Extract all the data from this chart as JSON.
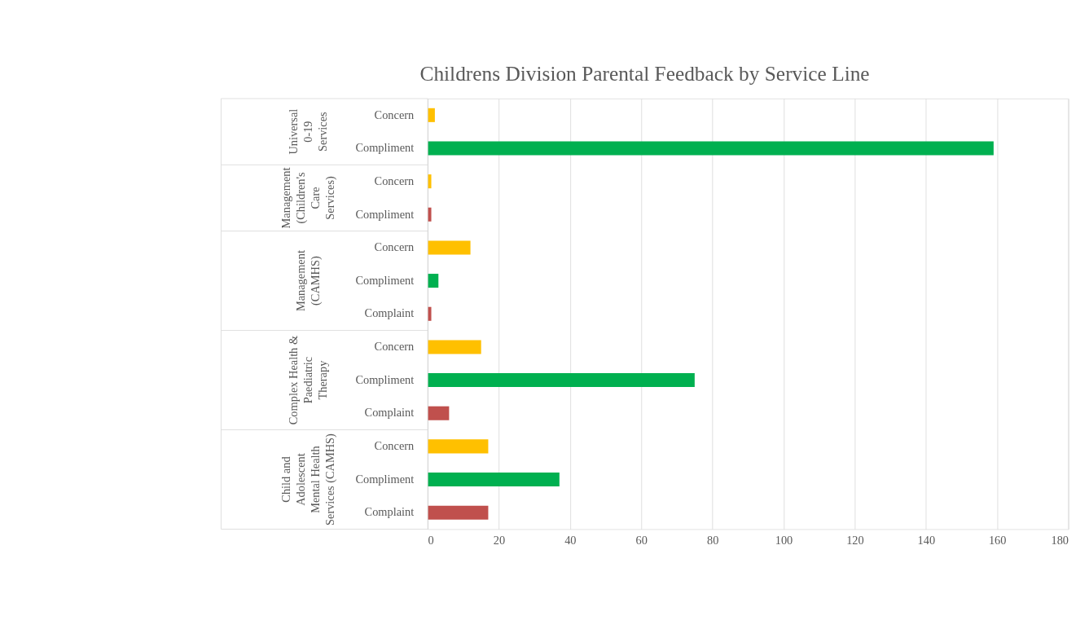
{
  "chart_data": {
    "type": "bar",
    "orientation": "horizontal",
    "title": "Childrens Division Parental Feedback by Service Line",
    "categories": [
      "Concern",
      "Compliment",
      "Concern",
      "Compliment",
      "Concern",
      "Compliment",
      "Complaint",
      "Concern",
      "Compliment",
      "Complaint",
      "Concern",
      "Compliment",
      "Complaint"
    ],
    "series": [
      {
        "values": [
          2,
          159,
          null,
          null,
          null,
          null,
          null,
          null,
          null,
          null,
          null,
          null,
          null
        ],
        "colors": [
          "#ffc000",
          "#00b050",
          null,
          null,
          null,
          null,
          null,
          null,
          null,
          null,
          null,
          null,
          null
        ]
      },
      {
        "values": [
          null,
          null,
          1,
          1,
          null,
          null,
          null,
          null,
          null,
          null,
          null,
          null,
          null
        ],
        "colors": [
          null,
          null,
          "#ffc000",
          "#c0504d",
          null,
          null,
          null,
          null,
          null,
          null,
          null,
          null,
          null
        ]
      },
      {
        "values": [
          null,
          null,
          null,
          null,
          12,
          3,
          1,
          null,
          null,
          null,
          null,
          null,
          null
        ],
        "colors": [
          null,
          null,
          null,
          null,
          "#ffc000",
          "#00b050",
          "#c0504d",
          null,
          null,
          null,
          null,
          null,
          null
        ]
      },
      {
        "values": [
          null,
          null,
          null,
          null,
          null,
          null,
          null,
          15,
          75,
          6,
          null,
          null,
          null
        ],
        "colors": [
          null,
          null,
          null,
          null,
          null,
          null,
          null,
          "#ffc000",
          "#00b050",
          "#c0504d",
          null,
          null,
          null
        ]
      },
      {
        "values": [
          null,
          null,
          null,
          null,
          null,
          null,
          null,
          null,
          null,
          null,
          17,
          37,
          17
        ],
        "colors": [
          null,
          null,
          null,
          null,
          null,
          null,
          null,
          null,
          null,
          null,
          "#ffc000",
          "#00b050",
          "#c0504d"
        ]
      }
    ],
    "annotations": [
      "Universal 0-19 Services",
      "Management (Children's Care Services)",
      "Management (CAMHS)",
      "Complex Health & Paediatric Therapy",
      "Child and Adolescent Mental Health Services (CAMHS)"
    ],
    "xlim": [
      0,
      180
    ],
    "xticks": [
      0,
      20,
      40,
      60,
      80,
      100,
      120,
      140,
      160,
      180
    ],
    "grid": "x"
  }
}
